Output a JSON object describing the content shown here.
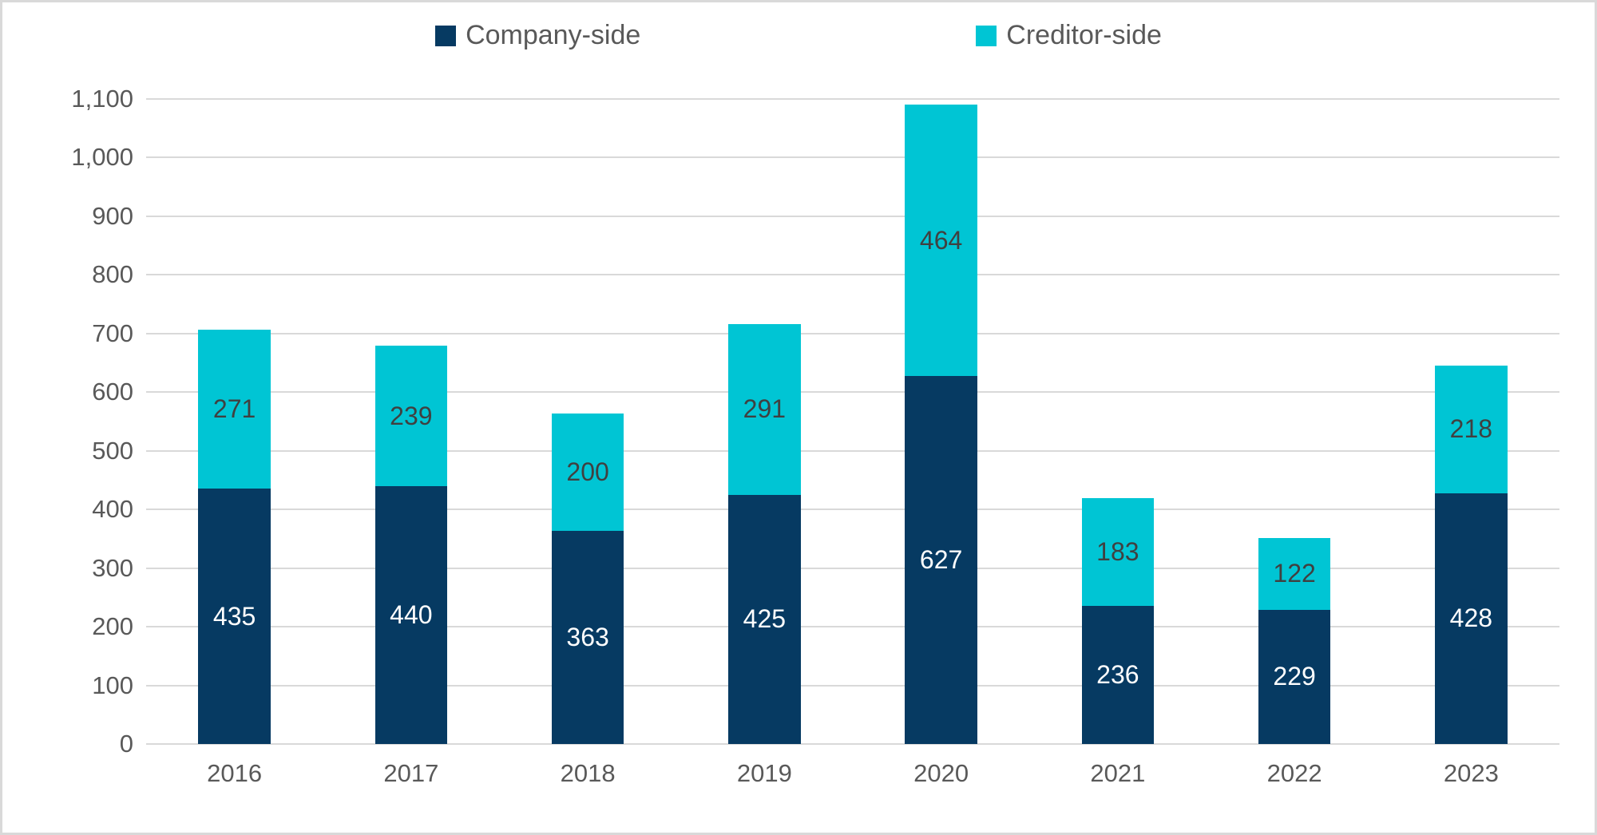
{
  "chart_data": {
    "type": "bar",
    "stacked": true,
    "title": "",
    "xlabel": "",
    "ylabel": "",
    "categories": [
      "2016",
      "2017",
      "2018",
      "2019",
      "2020",
      "2021",
      "2022",
      "2023"
    ],
    "series": [
      {
        "name": "Company-side",
        "color": "#063A62",
        "label_color": "#FFFFFF",
        "values": [
          435,
          440,
          363,
          425,
          627,
          236,
          229,
          428
        ]
      },
      {
        "name": "Creditor-side",
        "color": "#00C5D4",
        "label_color": "#404040",
        "values": [
          271,
          239,
          200,
          291,
          464,
          183,
          122,
          218
        ]
      }
    ],
    "totals": [
      706,
      679,
      563,
      716,
      1091,
      419,
      351,
      646
    ],
    "ylim": [
      0,
      1100
    ],
    "ytick_step": 100,
    "ytick_labels": [
      "0",
      "100",
      "200",
      "300",
      "400",
      "500",
      "600",
      "700",
      "800",
      "900",
      "1,000",
      "1,100"
    ],
    "grid": "horizontal",
    "legend_position": "top",
    "data_labels": "centered-in-segment"
  },
  "style": {
    "gridline_color": "#D9D9D9",
    "axis_text_color": "#595959",
    "frame_border_color": "#D9D9D9",
    "background_color": "#FFFFFF"
  }
}
